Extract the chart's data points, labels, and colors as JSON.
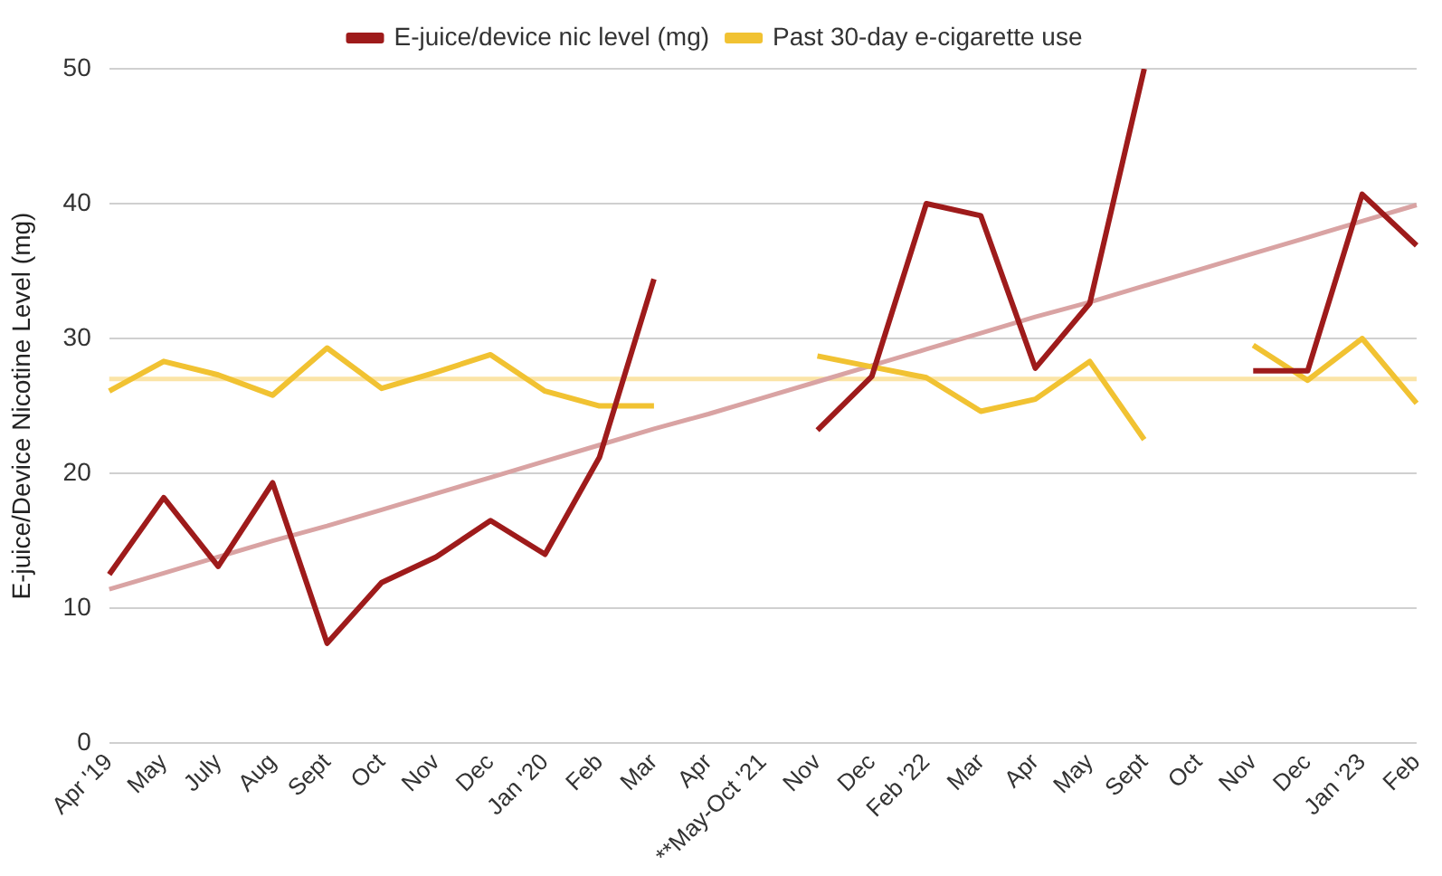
{
  "chart_data": {
    "type": "line",
    "ylabel": "E-juice/Device Nicotine Level (mg)",
    "categories": [
      "Apr '19",
      "May",
      "July",
      "Aug",
      "Sept",
      "Oct",
      "Nov",
      "Dec",
      "Jan '20",
      "Feb",
      "Mar",
      "Apr",
      "**May-Oct '21",
      "Nov",
      "Dec",
      "Feb '22",
      "Mar",
      "Apr",
      "May",
      "Sept",
      "Oct",
      "Nov",
      "Dec",
      "Jan '23",
      "Feb"
    ],
    "series": [
      {
        "name": "E-juice/device nic level (mg)",
        "color": "#9e1b1b",
        "values": [
          12.5,
          18.2,
          13.1,
          19.3,
          7.4,
          11.9,
          13.8,
          16.5,
          14.0,
          21.2,
          34.4,
          null,
          null,
          23.2,
          27.2,
          40.0,
          39.1,
          27.8,
          32.6,
          50.0,
          null,
          27.6,
          27.6,
          40.7,
          36.9
        ]
      },
      {
        "name": "Past 30-day e-cigarette use",
        "color": "#f1c232",
        "values": [
          26.1,
          28.3,
          27.3,
          25.8,
          29.3,
          26.3,
          27.5,
          28.8,
          26.1,
          25.0,
          25.0,
          null,
          null,
          28.7,
          27.9,
          27.1,
          24.6,
          25.5,
          28.3,
          22.5,
          null,
          29.5,
          26.9,
          30.0,
          25.2
        ]
      },
      {
        "type": "line",
        "color": "#d9a3a3",
        "values": [
          11.4,
          12.6,
          13.8,
          15.0,
          16.1,
          17.3,
          18.5,
          19.7,
          20.9,
          22.1,
          23.3,
          24.4,
          25.6,
          26.8,
          28.0,
          29.2,
          30.4,
          31.6,
          32.7,
          33.9,
          35.1,
          36.3,
          37.5,
          38.7,
          39.9
        ]
      }
    ],
    "ref_lines": [
      {
        "axis": "y",
        "value": 27.0,
        "color": "#fbe4a6"
      }
    ],
    "ylim": [
      0,
      50
    ],
    "yticks": [
      0,
      10,
      20,
      30,
      40,
      50
    ],
    "grid": "y",
    "legend": "top",
    "marker": "none",
    "line_style": "solid"
  }
}
